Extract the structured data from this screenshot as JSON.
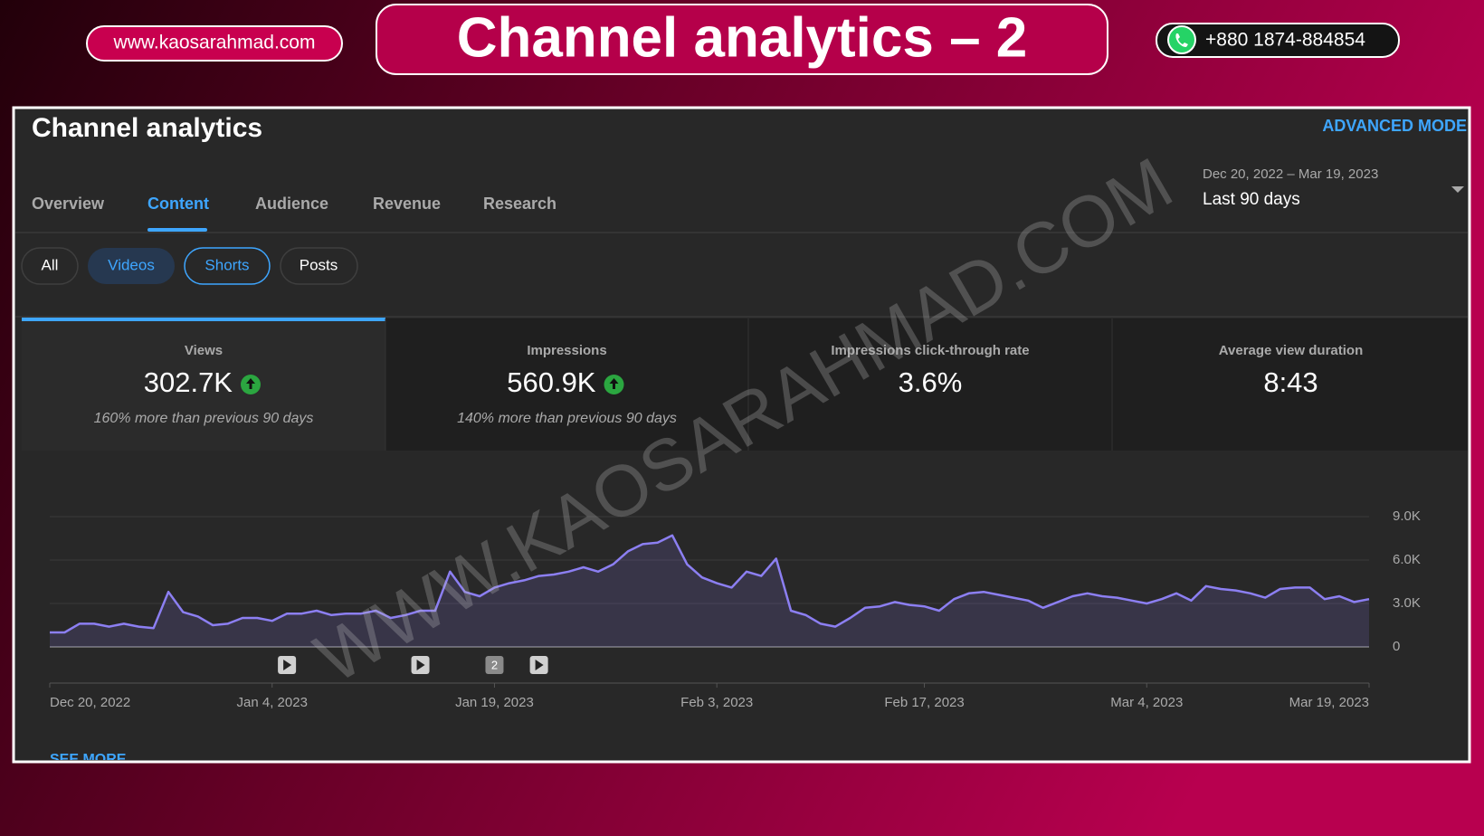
{
  "header": {
    "website": "www.kaosarahmad.com",
    "title": "Channel analytics – 2",
    "phone": "+880 1874-884854"
  },
  "app": {
    "title": "Channel analytics",
    "advanced_mode": "ADVANCED MODE",
    "tabs": [
      "Overview",
      "Content",
      "Audience",
      "Revenue",
      "Research"
    ],
    "date_range": "Dec 20, 2022 – Mar 19, 2023",
    "period": "Last 90 days",
    "filters": [
      "All",
      "Videos",
      "Shorts",
      "Posts"
    ],
    "metrics": [
      {
        "label": "Views",
        "value": "302.7K",
        "arrow": "up",
        "note": "160% more than previous 90 days"
      },
      {
        "label": "Impressions",
        "value": "560.9K",
        "arrow": "up",
        "note": "140% more than previous 90 days"
      },
      {
        "label": "Impressions click-through rate",
        "value": "3.6%"
      },
      {
        "label": "Average view duration",
        "value": "8:43"
      }
    ],
    "see_more": "SEE MORE",
    "watermark": "WWW.KAOSARAHMAD.COM"
  },
  "chart_data": {
    "type": "line",
    "categories": [
      "Dec 20, 2022",
      null,
      null,
      null,
      null,
      null,
      null,
      null,
      null,
      null,
      null,
      null,
      null,
      null,
      null,
      "Jan 4, 2023",
      null,
      null,
      null,
      null,
      null,
      null,
      null,
      null,
      null,
      null,
      null,
      null,
      null,
      null,
      "Jan 19, 2023",
      null,
      null,
      null,
      null,
      null,
      null,
      null,
      null,
      null,
      null,
      null,
      null,
      null,
      null,
      "Feb 3, 2023",
      null,
      null,
      null,
      null,
      null,
      null,
      null,
      null,
      null,
      null,
      null,
      null,
      null,
      "Feb 17, 2023",
      null,
      null,
      null,
      null,
      null,
      null,
      null,
      null,
      null,
      null,
      null,
      null,
      null,
      null,
      "Mar 4, 2023",
      null,
      null,
      null,
      null,
      null,
      null,
      null,
      null,
      null,
      null,
      null,
      null,
      null,
      null,
      "Mar 19, 2023"
    ],
    "values": [
      1000,
      1000,
      1600,
      1600,
      1400,
      1600,
      1400,
      1300,
      3800,
      2400,
      2100,
      1500,
      1600,
      2000,
      2000,
      1800,
      2300,
      2300,
      2500,
      2200,
      2300,
      2300,
      2500,
      2000,
      2200,
      2500,
      2500,
      5200,
      3800,
      3500,
      4100,
      4400,
      4600,
      4900,
      5000,
      5200,
      5500,
      5200,
      5700,
      6600,
      7100,
      7200,
      7700,
      5700,
      4800,
      4400,
      4100,
      5200,
      4900,
      6100,
      2500,
      2200,
      1600,
      1400,
      2000,
      2700,
      2800,
      3100,
      2900,
      2800,
      2500,
      3300,
      3700,
      3800,
      3600,
      3400,
      3200,
      2700,
      3100,
      3500,
      3700,
      3500,
      3400,
      3200,
      3000,
      3300,
      3700,
      3200,
      4200,
      4000,
      3900,
      3700,
      3400,
      4000,
      4100,
      4100,
      3300,
      3500,
      3100,
      3300
    ],
    "color": "#8c7ff2",
    "ylim": [
      0,
      9000
    ],
    "yticks": [
      0,
      {
        "value": 3000,
        "label": "3.0K"
      },
      {
        "value": 6000,
        "label": "6.0K"
      },
      {
        "value": 9000,
        "label": "9.0K"
      }
    ],
    "grid": true,
    "markers": [
      {
        "x": 16
      },
      {
        "x": 25
      },
      {
        "x": 30,
        "label": "2"
      },
      {
        "x": 33
      }
    ]
  }
}
